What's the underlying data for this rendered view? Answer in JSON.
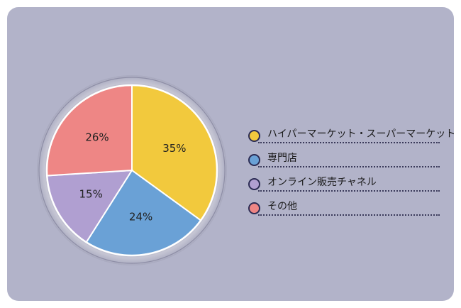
{
  "chart_data": {
    "type": "pie",
    "categories": [
      "ハイパーマーケット・スーパーマーケット",
      "専門店",
      "オンライン販売チャネル",
      "その他"
    ],
    "values": [
      35,
      24,
      15,
      26
    ],
    "value_labels": [
      "35%",
      "24%",
      "15%",
      "26%"
    ],
    "colors": [
      "#f2c93d",
      "#6aa1d6",
      "#b09fd1",
      "#ee8685"
    ],
    "legend_position": "right"
  },
  "colors": {
    "card_background": "#b2b3c9",
    "slice_border": "#ffffff"
  }
}
